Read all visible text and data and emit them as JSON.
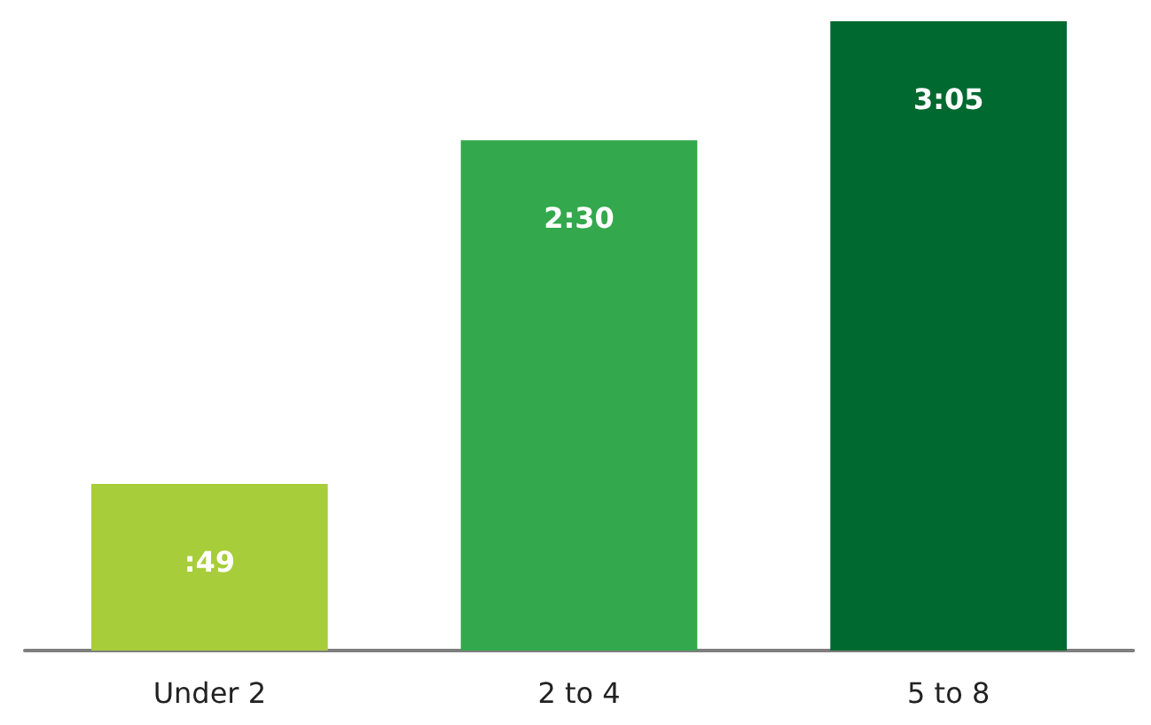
{
  "chart_data": {
    "type": "bar",
    "categories": [
      "Under 2",
      "2 to 4",
      "5 to 8"
    ],
    "values": [
      49,
      150,
      185
    ],
    "value_labels": [
      ":49",
      "2:30",
      "3:05"
    ],
    "colors": [
      "#a8cd3a",
      "#33a84c",
      "#00692f"
    ]
  }
}
